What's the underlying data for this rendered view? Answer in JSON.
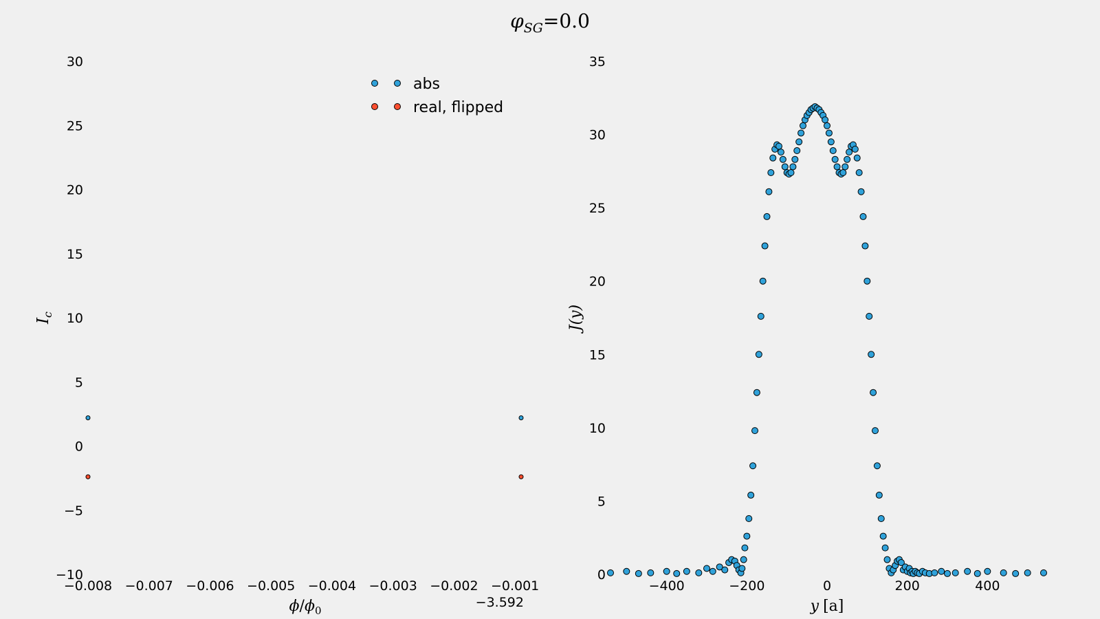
{
  "figure": {
    "title_symbol": "φ",
    "title_subscript": "SG",
    "title_rest": "=0.0"
  },
  "colors": {
    "background": "#f0f0f0",
    "abs": "#30a2da",
    "real_flipped": "#fc4f30",
    "marker_edge": "#000000"
  },
  "chart_data": [
    {
      "type": "scatter",
      "panel": "left",
      "xlabel_parts": {
        "num": "ϕ",
        "slash": "/",
        "den": "ϕ",
        "den_sub": "0"
      },
      "ylabel_parts": {
        "main": "I",
        "sub": "c"
      },
      "x_offset_text": "−3.592",
      "xlim": [
        -0.008,
        -0.0009
      ],
      "ylim": [
        -10,
        30
      ],
      "xticks": [
        -0.008,
        -0.007,
        -0.006,
        -0.005,
        -0.004,
        -0.003,
        -0.002,
        -0.001
      ],
      "xtick_labels": [
        "−0.008",
        "−0.007",
        "−0.006",
        "−0.005",
        "−0.004",
        "−0.003",
        "−0.002",
        "−0.001"
      ],
      "yticks": [
        -10,
        -5,
        0,
        5,
        10,
        15,
        20,
        25,
        30
      ],
      "ytick_labels": [
        "−10",
        "−5",
        "0",
        "5",
        "10",
        "15",
        "20",
        "25",
        "30"
      ],
      "legend": {
        "placement": "upper-right",
        "entries": [
          "abs",
          "real, flipped"
        ]
      },
      "series": [
        {
          "name": "abs",
          "color_key": "abs",
          "x": [
            -0.008,
            -0.0009
          ],
          "y": [
            2.2,
            2.2
          ]
        },
        {
          "name": "real, flipped",
          "color_key": "real_flipped",
          "x": [
            -0.008,
            -0.0009
          ],
          "y": [
            -2.4,
            -2.4
          ]
        }
      ]
    },
    {
      "type": "scatter",
      "panel": "right",
      "xlabel_parts": {
        "var": "y",
        "unit": "[a]"
      },
      "ylabel_parts": {
        "text": "J(y)"
      },
      "xlim": [
        -540,
        540
      ],
      "ylim": [
        0,
        35
      ],
      "xticks": [
        -400,
        -200,
        0,
        200,
        400
      ],
      "xtick_labels": [
        "−400",
        "−200",
        "0",
        "200",
        "400"
      ],
      "yticks": [
        0,
        5,
        10,
        15,
        20,
        25,
        30,
        35
      ],
      "ytick_labels": [
        "0",
        "5",
        "10",
        "15",
        "20",
        "25",
        "30",
        "35"
      ],
      "grid": false,
      "series": [
        {
          "name": "J(y)",
          "color_key": "abs",
          "x": [
            -540,
            -500,
            -470,
            -440,
            -400,
            -375,
            -350,
            -320,
            -300,
            -285,
            -268,
            -255,
            -245,
            -238,
            -230,
            -225,
            -220,
            -215,
            -212,
            -208,
            -205,
            -200,
            -195,
            -190,
            -185,
            -180,
            -175,
            -170,
            -165,
            -160,
            -155,
            -150,
            -145,
            -140,
            -135,
            -130,
            -125,
            -120,
            -115,
            -110,
            -105,
            -100,
            -95,
            -90,
            -85,
            -80,
            -75,
            -70,
            -65,
            -60,
            -55,
            -50,
            -45,
            -40,
            -35,
            -30,
            -25,
            -20,
            -15,
            -10,
            -5,
            0,
            5,
            10,
            15,
            20,
            25,
            30,
            35,
            40,
            45,
            50,
            55,
            60,
            65,
            70,
            75,
            80,
            85,
            90,
            95,
            100,
            105,
            110,
            115,
            120,
            125,
            130,
            135,
            140,
            145,
            150,
            155,
            160,
            165,
            170,
            175,
            180,
            185,
            190,
            195,
            200,
            205,
            208,
            212,
            215,
            220,
            225,
            230,
            238,
            245,
            255,
            268,
            285,
            300,
            320,
            350,
            375,
            400,
            440,
            470,
            500,
            540
          ],
          "y": [
            0.1,
            0.2,
            0.05,
            0.1,
            0.2,
            0.05,
            0.2,
            0.1,
            0.4,
            0.2,
            0.5,
            0.3,
            0.8,
            1.0,
            0.9,
            0.6,
            0.3,
            0.1,
            0.4,
            1.0,
            1.8,
            2.6,
            3.8,
            5.4,
            7.4,
            9.8,
            12.4,
            15.0,
            17.6,
            20.0,
            22.4,
            24.4,
            26.1,
            27.4,
            28.4,
            29.0,
            29.3,
            29.2,
            28.8,
            28.3,
            27.8,
            27.4,
            27.3,
            27.4,
            27.8,
            28.3,
            28.9,
            29.5,
            30.1,
            30.6,
            31.0,
            31.3,
            31.5,
            31.7,
            31.8,
            31.9,
            31.8,
            31.7,
            31.5,
            31.3,
            31.0,
            30.6,
            30.1,
            29.5,
            28.9,
            28.3,
            27.8,
            27.4,
            27.3,
            27.4,
            27.8,
            28.3,
            28.8,
            29.2,
            29.3,
            29.0,
            28.4,
            27.4,
            26.1,
            24.4,
            22.4,
            20.0,
            17.6,
            15.0,
            12.4,
            9.8,
            7.4,
            5.4,
            3.8,
            2.6,
            1.8,
            1.0,
            0.4,
            0.1,
            0.3,
            0.6,
            0.9,
            1.0,
            0.8,
            0.3,
            0.5,
            0.2,
            0.4,
            0.1,
            0.2,
            0.05,
            0.2,
            0.1,
            0.05,
            0.2,
            0.1,
            0.05,
            0.1,
            0.2,
            0.05,
            0.1,
            0.2,
            0.05,
            0.2,
            0.1,
            0.05,
            0.1,
            0.1
          ]
        }
      ]
    }
  ]
}
